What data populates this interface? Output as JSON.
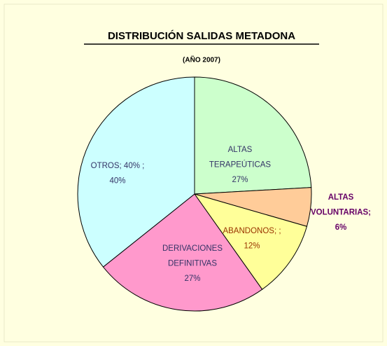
{
  "chart_data": {
    "type": "pie",
    "title": "DISTRIBUCIÓN SALIDAS METADONA",
    "subtitle": "(AÑO 2007)",
    "categories": [
      [
        "ALTAS",
        "TERAPEÚTICAS"
      ],
      [
        "ALTAS",
        "VOLUNTARIAS;"
      ],
      [
        "ABANDONOS; ;"
      ],
      [
        "DERIVACIONES",
        "DEFINITIVAS"
      ],
      [
        "OTROS; 40% ;"
      ]
    ],
    "values": [
      27,
      6,
      12,
      27,
      40
    ],
    "value_labels": [
      "27%",
      "6%",
      "12%",
      "27%",
      "40%"
    ],
    "colors": [
      "#ccffcc",
      "#ffcc99",
      "#ffff99",
      "#ff99cc",
      "#ccffff"
    ],
    "label_colors": [
      "#333366",
      "#660066",
      "#993300",
      "#333366",
      "#333366"
    ]
  }
}
